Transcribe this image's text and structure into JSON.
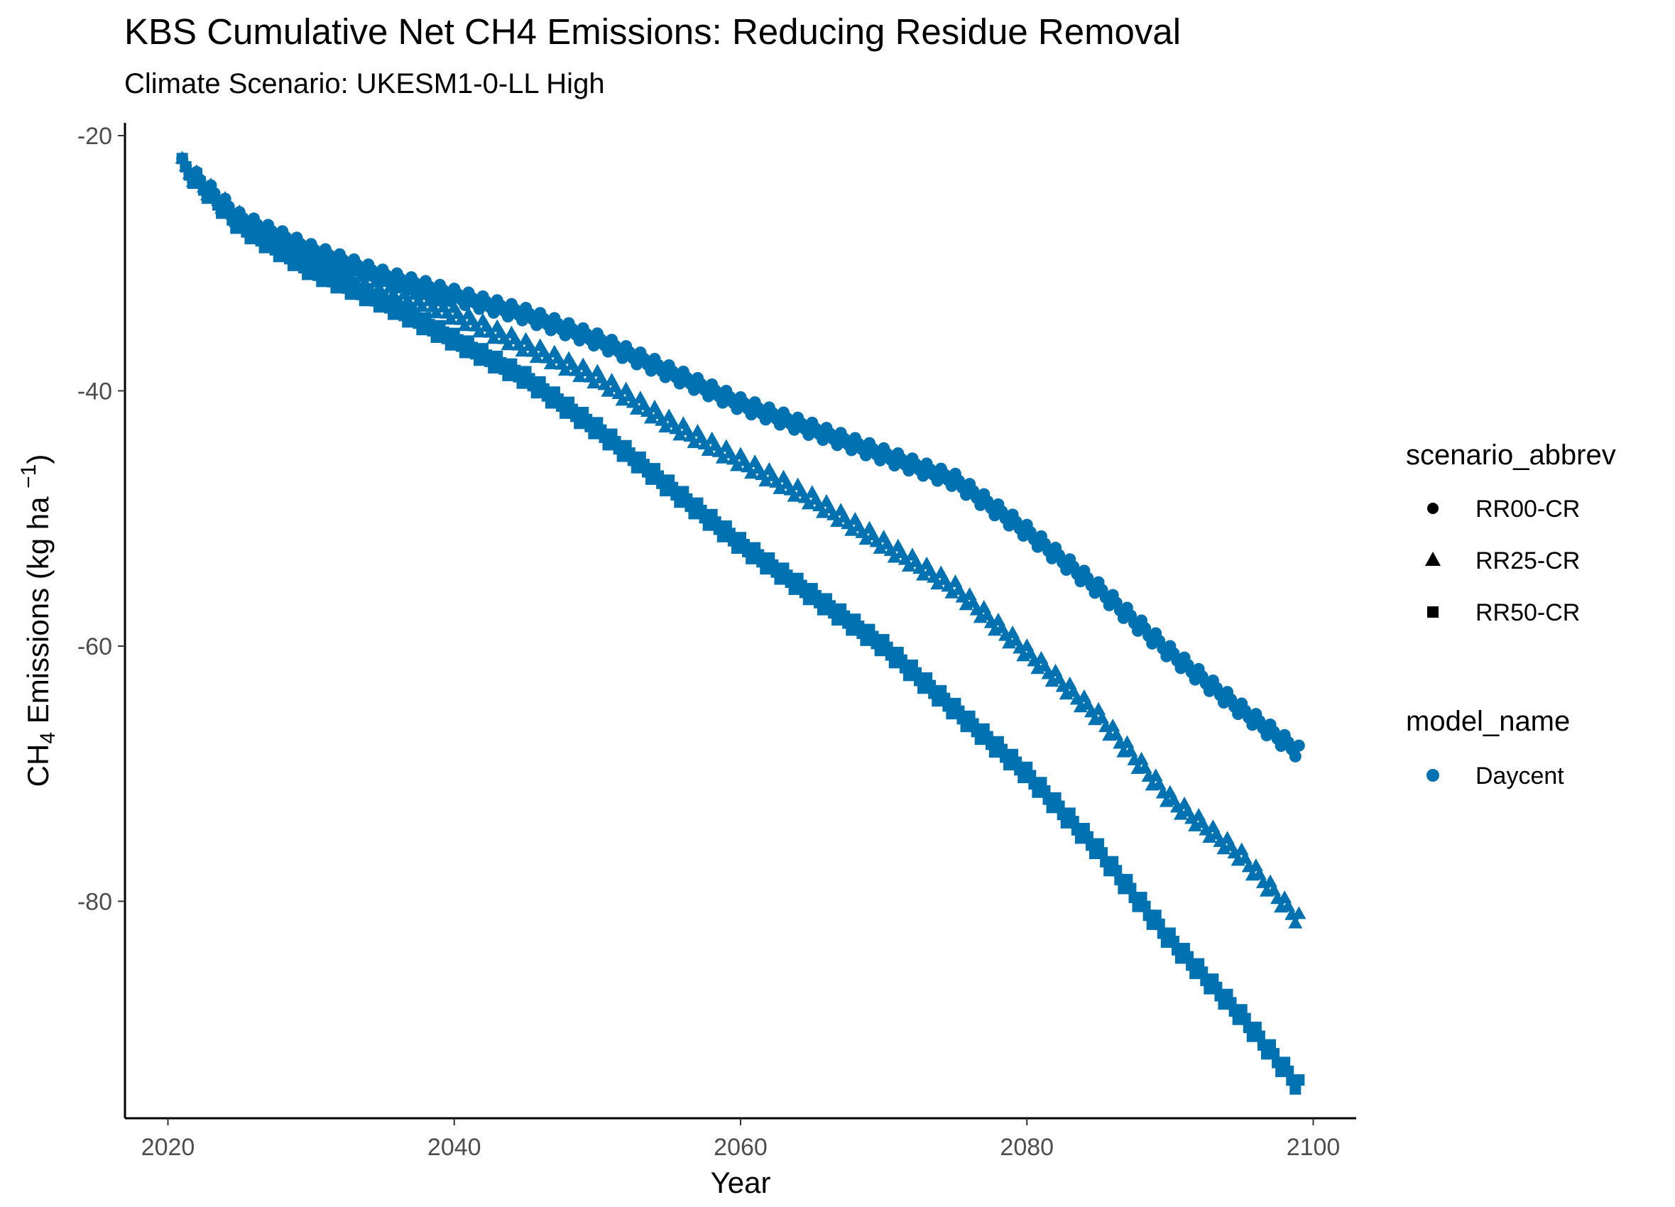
{
  "chart_data": {
    "type": "scatter",
    "title": "KBS  Cumulative Net CH4 Emissions: Reducing Residue Removal",
    "subtitle": "Climate Scenario: UKESM1-0-LL High",
    "xlabel": "Year",
    "ylabel": {
      "prefix": "CH",
      "sub": "4",
      "mid": " Emissions (kg ha ",
      "sup": "−1",
      "suffix": ")"
    },
    "xlim": [
      2017,
      2103
    ],
    "ylim": [
      -97,
      -19
    ],
    "xticks": [
      {
        "value": 2020,
        "label": "2020"
      },
      {
        "value": 2040,
        "label": "2040"
      },
      {
        "value": 2060,
        "label": "2060"
      },
      {
        "value": 2080,
        "label": "2080"
      },
      {
        "value": 2100,
        "label": "2100"
      }
    ],
    "yticks": [
      {
        "value": -20,
        "label": "-20"
      },
      {
        "value": -40,
        "label": "-40"
      },
      {
        "value": -60,
        "label": "-60"
      },
      {
        "value": -80,
        "label": "-80"
      }
    ],
    "grid": false,
    "legend_position": "right",
    "color": "#0072B2",
    "legend": {
      "shape_title": "scenario_abbrev",
      "color_title": "model_name",
      "color_label": "Daycent"
    },
    "series": [
      {
        "name": "RR00-CR",
        "shape": "circle",
        "points": [
          [
            2021,
            -21.8
          ],
          [
            2025,
            -26.0
          ],
          [
            2030,
            -28.5
          ],
          [
            2035,
            -30.5
          ],
          [
            2040,
            -32.0
          ],
          [
            2045,
            -33.5
          ],
          [
            2050,
            -35.5
          ],
          [
            2055,
            -38.0
          ],
          [
            2060,
            -40.5
          ],
          [
            2065,
            -42.5
          ],
          [
            2070,
            -44.5
          ],
          [
            2075,
            -46.5
          ],
          [
            2080,
            -50.5
          ],
          [
            2085,
            -55.0
          ],
          [
            2090,
            -60.0
          ],
          [
            2095,
            -64.5
          ],
          [
            2099,
            -67.8
          ]
        ]
      },
      {
        "name": "RR25-CR",
        "shape": "triangle",
        "points": [
          [
            2021,
            -21.8
          ],
          [
            2025,
            -26.0
          ],
          [
            2030,
            -29.0
          ],
          [
            2035,
            -31.0
          ],
          [
            2040,
            -33.5
          ],
          [
            2045,
            -36.0
          ],
          [
            2050,
            -38.5
          ],
          [
            2055,
            -42.0
          ],
          [
            2060,
            -45.0
          ],
          [
            2065,
            -48.0
          ],
          [
            2070,
            -51.5
          ],
          [
            2075,
            -55.0
          ],
          [
            2080,
            -60.0
          ],
          [
            2085,
            -65.0
          ],
          [
            2090,
            -71.5
          ],
          [
            2095,
            -76.0
          ],
          [
            2099,
            -81.0
          ]
        ]
      },
      {
        "name": "RR50-CR",
        "shape": "square",
        "points": [
          [
            2021,
            -21.8
          ],
          [
            2025,
            -26.5
          ],
          [
            2030,
            -30.0
          ],
          [
            2035,
            -32.5
          ],
          [
            2040,
            -35.5
          ],
          [
            2045,
            -38.5
          ],
          [
            2050,
            -42.5
          ],
          [
            2055,
            -47.0
          ],
          [
            2060,
            -51.5
          ],
          [
            2065,
            -55.5
          ],
          [
            2070,
            -59.5
          ],
          [
            2075,
            -64.5
          ],
          [
            2080,
            -69.5
          ],
          [
            2085,
            -75.5
          ],
          [
            2090,
            -82.5
          ],
          [
            2095,
            -88.5
          ],
          [
            2099,
            -94.0
          ]
        ]
      }
    ]
  }
}
